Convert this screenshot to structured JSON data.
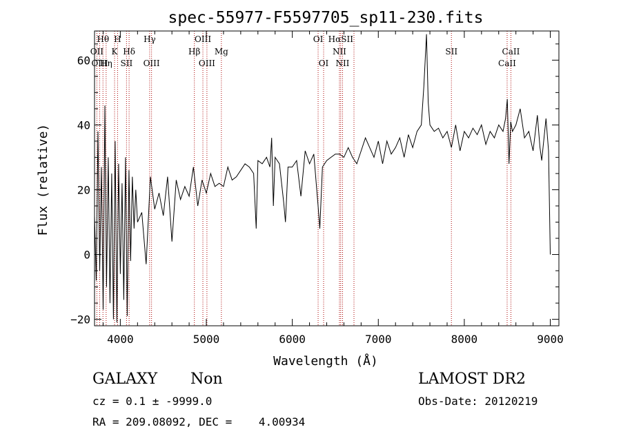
{
  "chart_data": {
    "type": "line",
    "title": "spec-55977-F5597705_sp11-230.fits",
    "xlabel": "Wavelength (Å)",
    "ylabel": "Flux (relative)",
    "xlim": [
      3700,
      9100
    ],
    "ylim": [
      -22,
      69
    ],
    "xticks": [
      4000,
      5000,
      6000,
      7000,
      8000,
      9000
    ],
    "yticks": [
      -20,
      0,
      20,
      40,
      60
    ],
    "grid": false,
    "series": [
      {
        "x": [
          3700,
          3720,
          3740,
          3760,
          3780,
          3800,
          3820,
          3840,
          3860,
          3880,
          3900,
          3920,
          3940,
          3960,
          3980,
          4000,
          4020,
          4040,
          4060,
          4080,
          4100,
          4120,
          4140,
          4160,
          4180,
          4200,
          4250,
          4300,
          4350,
          4400,
          4450,
          4500,
          4550,
          4600,
          4650,
          4700,
          4750,
          4800,
          4850,
          4900,
          4950,
          5000,
          5050,
          5100,
          5150,
          5200,
          5250,
          5300,
          5350,
          5400,
          5450,
          5500,
          5550,
          5580,
          5600,
          5650,
          5700,
          5740,
          5760,
          5780,
          5800,
          5850,
          5900,
          5920,
          5950,
          6000,
          6050,
          6100,
          6150,
          6200,
          6250,
          6300,
          6320,
          6350,
          6400,
          6450,
          6500,
          6550,
          6600,
          6650,
          6700,
          6750,
          6800,
          6850,
          6900,
          6950,
          7000,
          7050,
          7100,
          7150,
          7200,
          7250,
          7300,
          7350,
          7400,
          7450,
          7500,
          7530,
          7560,
          7580,
          7600,
          7650,
          7700,
          7750,
          7800,
          7850,
          7900,
          7950,
          8000,
          8050,
          8100,
          8150,
          8200,
          8250,
          8300,
          8350,
          8400,
          8450,
          8480,
          8500,
          8520,
          8540,
          8560,
          8600,
          8650,
          8700,
          8750,
          8800,
          8850,
          8880,
          8900,
          8950,
          8980,
          9000
        ],
        "y": [
          12,
          -8,
          38,
          -5,
          27,
          -17,
          46,
          -10,
          30,
          -15,
          25,
          -20,
          35,
          -21,
          28,
          -6,
          22,
          -14,
          30,
          -19,
          26,
          -2,
          24,
          8,
          20,
          10,
          13,
          -3,
          24,
          14,
          19,
          12,
          24,
          4,
          23,
          17,
          21,
          18,
          27,
          15,
          23,
          19,
          25,
          21,
          22,
          21,
          27,
          23,
          24,
          26,
          28,
          27,
          25,
          8,
          29,
          28,
          30,
          27,
          36,
          15,
          30,
          28,
          16,
          10,
          27,
          27,
          29,
          18,
          32,
          28,
          31,
          15,
          8,
          27,
          29,
          30,
          31,
          31,
          30,
          33,
          30,
          28,
          32,
          36,
          33,
          30,
          35,
          28,
          35,
          31,
          33,
          36,
          30,
          37,
          33,
          38,
          40,
          52,
          68,
          47,
          40,
          38,
          39,
          36,
          38,
          33,
          40,
          32,
          38,
          36,
          39,
          37,
          40,
          34,
          38,
          36,
          40,
          38,
          42,
          48,
          28,
          41,
          38,
          40,
          45,
          36,
          38,
          32,
          43,
          33,
          29,
          42,
          32,
          0
        ]
      }
    ],
    "annotations": [
      {
        "label": "Hθ",
        "x": 3798,
        "row": 0
      },
      {
        "label": "H",
        "x": 3968,
        "row": 0
      },
      {
        "label": "Hγ",
        "x": 4341,
        "row": 0
      },
      {
        "label": "OIII",
        "x": 4960,
        "row": 0
      },
      {
        "label": "OI",
        "x": 6300,
        "row": 0
      },
      {
        "label": "HαSII",
        "x": 6563,
        "row": 0
      },
      {
        "label": "OII",
        "x": 3727,
        "row": 1
      },
      {
        "label": "K",
        "x": 3933,
        "row": 1
      },
      {
        "label": "Hδ",
        "x": 4102,
        "row": 1
      },
      {
        "label": "Hβ",
        "x": 4861,
        "row": 1
      },
      {
        "label": "Mg",
        "x": 5175,
        "row": 1
      },
      {
        "label": "NII",
        "x": 6548,
        "row": 1
      },
      {
        "label": "SII",
        "x": 7850,
        "row": 1
      },
      {
        "label": "CaII",
        "x": 8542,
        "row": 1
      },
      {
        "label": "OIII",
        "x": 3760,
        "row": 2
      },
      {
        "label": "Hη",
        "x": 3835,
        "row": 2
      },
      {
        "label": "SII",
        "x": 4072,
        "row": 2
      },
      {
        "label": "OIII",
        "x": 4363,
        "row": 2
      },
      {
        "label": "OIII",
        "x": 5007,
        "row": 2
      },
      {
        "label": "OI",
        "x": 6364,
        "row": 2
      },
      {
        "label": "NII",
        "x": 6584,
        "row": 2
      },
      {
        "label": "CaII",
        "x": 8498,
        "row": 2
      }
    ],
    "line_markers": [
      3727,
      3760,
      3798,
      3835,
      3933,
      3968,
      4072,
      4102,
      4341,
      4363,
      4861,
      4960,
      5007,
      5175,
      6300,
      6364,
      6548,
      6563,
      6584,
      6717,
      7850,
      8498,
      8542
    ]
  },
  "info": {
    "class_label": "GALAXY",
    "subclass_label": "Non",
    "survey_label": "LAMOST DR2",
    "cz_line": "cz = 0.1 ± -9999.0",
    "obs_date_line": "Obs-Date: 20120219",
    "radec_line": "RA = 209.08092, DEC =    4.00934"
  },
  "colors": {
    "spectrum": "#000000",
    "markers": "#aa0000"
  }
}
